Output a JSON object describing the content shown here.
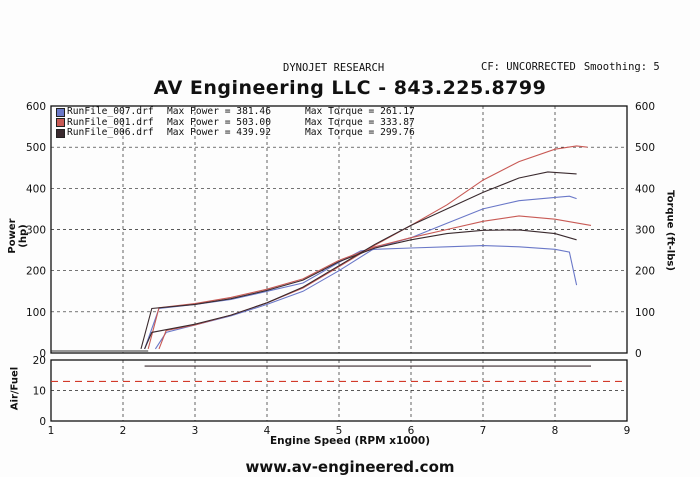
{
  "header": {
    "dyno": "DYNOJET RESEARCH",
    "correction": "CF: UNCORRECTED",
    "smoothing": "Smoothing: 5",
    "title": "AV Engineering LLC - 843.225.8799"
  },
  "footer": {
    "url": "www.av-engineered.com"
  },
  "colors": {
    "run007": "#6a78c8",
    "run001": "#c85a55",
    "run006": "#3a2a2e",
    "afr_target": "#d23a2a"
  },
  "legend": [
    {
      "file": "RunFile_007.drf",
      "power": "Max Power = 381.46",
      "torque": "Max Torque = 261.17",
      "color_key": "run007"
    },
    {
      "file": "RunFile_001.drf",
      "power": "Max Power = 503.00",
      "torque": "Max Torque = 333.87",
      "color_key": "run001"
    },
    {
      "file": "RunFile_006.drf",
      "power": "Max Power = 439.92",
      "torque": "Max Torque = 299.76",
      "color_key": "run006"
    }
  ],
  "chart_data": [
    {
      "type": "line",
      "xlabel": "Engine Speed (RPM x1000)",
      "ylabel": "Power (hp)",
      "y2label": "Torque (ft-lbs)",
      "xlim": [
        1,
        9
      ],
      "ylim": [
        0,
        600
      ],
      "y2lim": [
        0,
        600
      ],
      "x_ticks": [
        1,
        2,
        3,
        4,
        5,
        6,
        7,
        8,
        9
      ],
      "y_ticks": [
        0,
        100,
        200,
        300,
        400,
        500,
        600
      ],
      "grid": true,
      "legend_position": "top-left",
      "series": [
        {
          "name": "RunFile_007.drf",
          "measure": "Power",
          "color_key": "run007",
          "x": [
            2.45,
            2.6,
            3.0,
            3.5,
            4.0,
            4.5,
            5.0,
            5.5,
            6.0,
            6.5,
            7.0,
            7.5,
            8.0,
            8.2,
            8.3
          ],
          "y": [
            10,
            50,
            68,
            90,
            118,
            150,
            200,
            255,
            280,
            315,
            350,
            370,
            378,
            381,
            375
          ]
        },
        {
          "name": "RunFile_007.drf",
          "measure": "Torque",
          "color_key": "run007",
          "x": [
            2.3,
            2.5,
            3.0,
            3.5,
            4.0,
            4.5,
            5.0,
            5.3,
            5.5,
            6.0,
            6.5,
            7.0,
            7.5,
            8.0,
            8.2,
            8.3
          ],
          "y": [
            10,
            108,
            118,
            130,
            150,
            170,
            220,
            248,
            252,
            255,
            258,
            261,
            258,
            252,
            245,
            165
          ]
        },
        {
          "name": "RunFile_001.drf",
          "measure": "Power",
          "color_key": "run001",
          "x": [
            2.5,
            2.6,
            3.0,
            3.5,
            4.0,
            4.5,
            5.0,
            5.5,
            6.0,
            6.5,
            7.0,
            7.5,
            8.0,
            8.3,
            8.45
          ],
          "y": [
            10,
            55,
            68,
            92,
            122,
            158,
            210,
            262,
            310,
            360,
            420,
            465,
            495,
            503,
            500
          ]
        },
        {
          "name": "RunFile_001.drf",
          "measure": "Torque",
          "color_key": "run001",
          "x": [
            2.35,
            2.5,
            3.0,
            3.5,
            4.0,
            4.5,
            5.0,
            5.5,
            6.0,
            6.5,
            7.0,
            7.5,
            8.0,
            8.5
          ],
          "y": [
            10,
            110,
            120,
            135,
            155,
            180,
            225,
            258,
            280,
            300,
            320,
            333,
            325,
            310
          ]
        },
        {
          "name": "RunFile_006.drf",
          "measure": "Power",
          "color_key": "run006",
          "x": [
            2.3,
            2.4,
            3.0,
            3.5,
            4.0,
            4.5,
            5.0,
            5.5,
            6.0,
            6.5,
            7.0,
            7.5,
            7.9,
            8.3
          ],
          "y": [
            10,
            50,
            70,
            92,
            122,
            160,
            212,
            264,
            310,
            350,
            390,
            425,
            440,
            435
          ]
        },
        {
          "name": "RunFile_006.drf",
          "measure": "Torque",
          "color_key": "run006",
          "x": [
            2.25,
            2.4,
            3.0,
            3.5,
            4.0,
            4.5,
            5.0,
            5.5,
            6.0,
            6.5,
            7.0,
            7.5,
            8.0,
            8.3
          ],
          "y": [
            10,
            108,
            118,
            132,
            152,
            177,
            222,
            255,
            275,
            290,
            298,
            299,
            290,
            275
          ]
        }
      ]
    },
    {
      "type": "line",
      "ylabel": "Air/Fuel",
      "xlim": [
        1,
        9
      ],
      "ylim": [
        0,
        20
      ],
      "y_ticks": [
        0,
        10,
        20
      ],
      "grid": true,
      "series": [
        {
          "measure": "Air/Fuel",
          "color_key": "run006",
          "x": [
            2.3,
            8.5
          ],
          "y": [
            18,
            18
          ]
        },
        {
          "measure": "Target",
          "color_key": "afr_target",
          "style": "dashed",
          "x": [
            1,
            9
          ],
          "y": [
            13,
            13
          ]
        }
      ]
    }
  ]
}
